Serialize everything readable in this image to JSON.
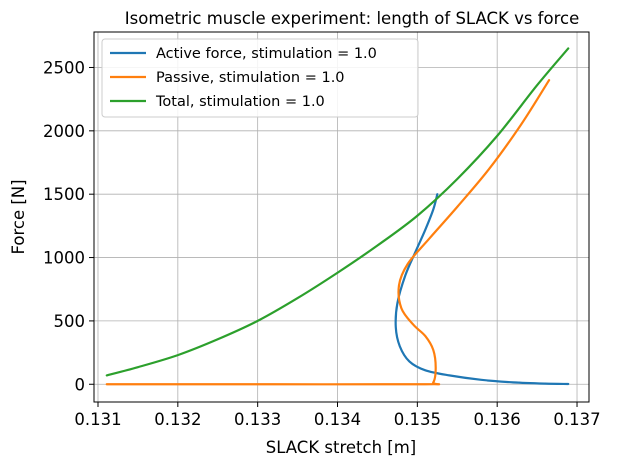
{
  "chart_data": {
    "type": "line",
    "title": "Isometric muscle experiment: length of SLACK vs force",
    "xlabel": "SLACK stretch [m]",
    "ylabel": "Force [N]",
    "xlim": [
      0.13095,
      0.13715
    ],
    "ylim": [
      -140,
      2780
    ],
    "xticks": [
      0.131,
      0.132,
      0.133,
      0.134,
      0.135,
      0.136,
      0.137
    ],
    "xtick_labels": [
      "0.131",
      "0.132",
      "0.133",
      "0.134",
      "0.135",
      "0.136",
      "0.137"
    ],
    "yticks": [
      0,
      500,
      1000,
      1500,
      2000,
      2500
    ],
    "ytick_labels": [
      "0",
      "500",
      "1000",
      "1500",
      "2000",
      "2500"
    ],
    "grid": true,
    "legend_position": "top-left",
    "series": [
      {
        "name": "Active force, stimulation = 1.0",
        "color": "#1f77b4",
        "x": [
          0.13525,
          0.1352,
          0.1351,
          0.13498,
          0.13485,
          0.13475,
          0.13473,
          0.13478,
          0.1349,
          0.1351,
          0.1354,
          0.1358,
          0.1362,
          0.1366,
          0.13689
        ],
        "y": [
          1500,
          1380,
          1220,
          1050,
          860,
          640,
          450,
          300,
          180,
          110,
          70,
          35,
          15,
          5,
          2
        ]
      },
      {
        "name": "Passive, stimulation = 1.0",
        "color": "#ff7f0e",
        "x": [
          0.13111,
          0.1332,
          0.1351,
          0.1352,
          0.13523,
          0.1352,
          0.1351,
          0.13495,
          0.1348,
          0.13477,
          0.13488,
          0.13515,
          0.1355,
          0.1359,
          0.1363,
          0.13665
        ],
        "y": [
          0,
          0,
          0,
          15,
          130,
          270,
          380,
          470,
          600,
          780,
          950,
          1150,
          1400,
          1700,
          2050,
          2400
        ]
      },
      {
        "name": "Total, stimulation = 1.0",
        "color": "#2ca02c",
        "x": [
          0.13111,
          0.1315,
          0.132,
          0.1325,
          0.133,
          0.1335,
          0.134,
          0.1345,
          0.135,
          0.1355,
          0.136,
          0.1365,
          0.13689
        ],
        "y": [
          70,
          135,
          230,
          355,
          500,
          680,
          880,
          1095,
          1330,
          1620,
          1960,
          2360,
          2650
        ]
      }
    ]
  }
}
